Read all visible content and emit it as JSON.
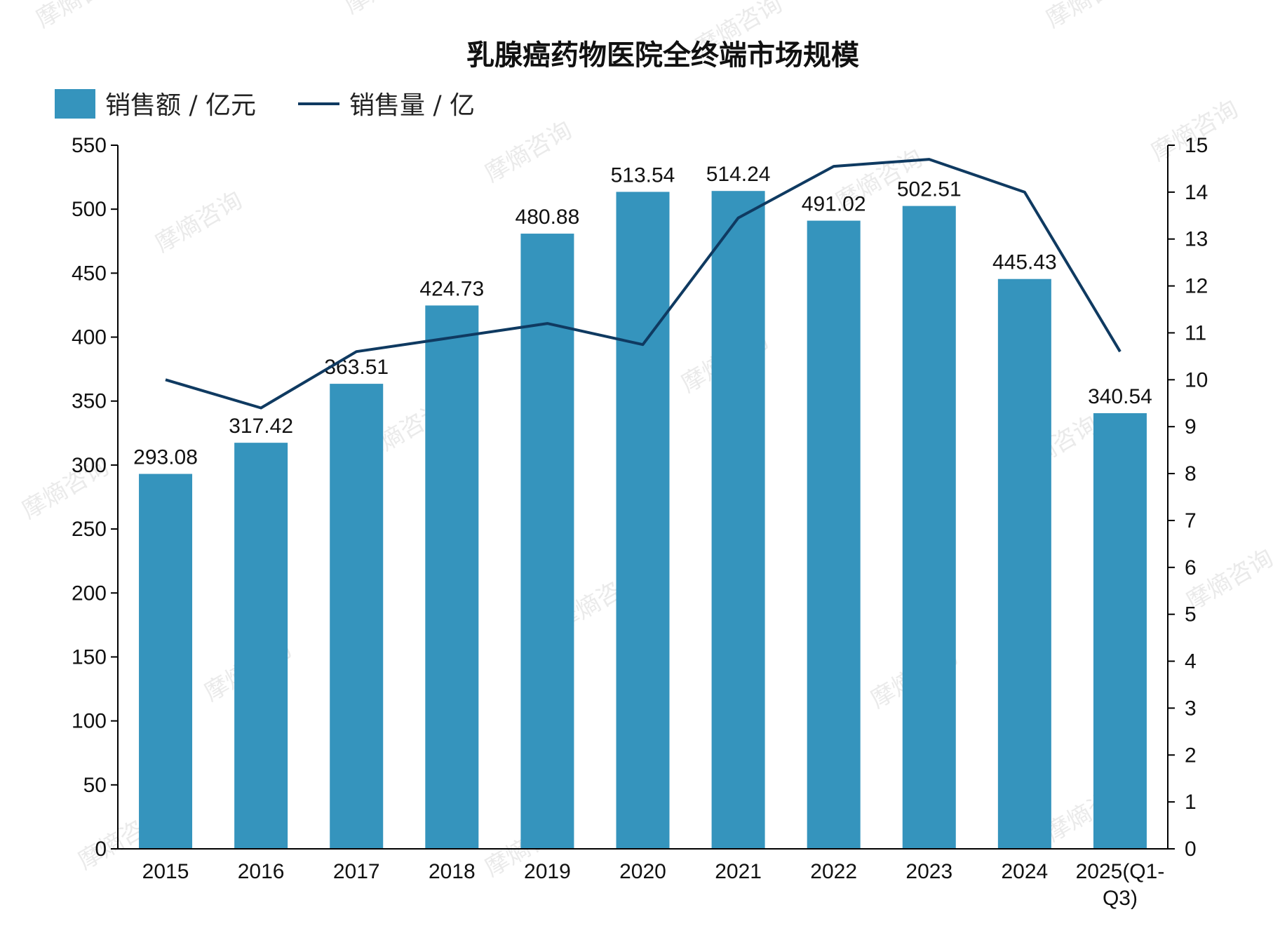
{
  "chart_data": {
    "type": "bar+line",
    "title": "乳腺癌药物医院全终端市场规模",
    "categories": [
      "2015",
      "2016",
      "2017",
      "2018",
      "2019",
      "2020",
      "2021",
      "2022",
      "2023",
      "2024",
      "2025(Q1-Q3)"
    ],
    "category_lines": [
      [
        "2015"
      ],
      [
        "2016"
      ],
      [
        "2017"
      ],
      [
        "2018"
      ],
      [
        "2019"
      ],
      [
        "2020"
      ],
      [
        "2021"
      ],
      [
        "2022"
      ],
      [
        "2023"
      ],
      [
        "2024"
      ],
      [
        "2025(Q1-",
        "Q3)"
      ]
    ],
    "series": [
      {
        "name": "销售额 / 亿元",
        "type": "bar",
        "axis": "left",
        "values": [
          293.08,
          317.42,
          363.51,
          424.73,
          480.88,
          513.54,
          514.24,
          491.02,
          502.51,
          445.43,
          340.54
        ],
        "value_labels": [
          "293.08",
          "317.42",
          "363.51",
          "424.73",
          "480.88",
          "513.54",
          "514.24",
          "491.02",
          "502.51",
          "445.43",
          "340.54"
        ]
      },
      {
        "name": "销售量 / 亿",
        "type": "line",
        "axis": "right",
        "values": [
          10.0,
          9.4,
          10.6,
          10.9,
          11.2,
          10.75,
          13.45,
          14.55,
          14.7,
          14.0,
          10.6
        ]
      }
    ],
    "y_left": {
      "min": 0,
      "max": 550,
      "ticks": [
        "0",
        "50",
        "100",
        "150",
        "200",
        "250",
        "300",
        "350",
        "400",
        "450",
        "500",
        "550"
      ]
    },
    "y_right": {
      "min": 0,
      "max": 15,
      "ticks": [
        "0",
        "1",
        "2",
        "3",
        "4",
        "5",
        "6",
        "7",
        "8",
        "9",
        "10",
        "11",
        "12",
        "13",
        "14",
        "15"
      ]
    },
    "grid": false,
    "legend_position": "top-left",
    "colors": {
      "bar": "#3594bd",
      "line": "#0f3a61",
      "axis": "#000000"
    }
  },
  "watermark": {
    "text": "摩熵咨询"
  }
}
